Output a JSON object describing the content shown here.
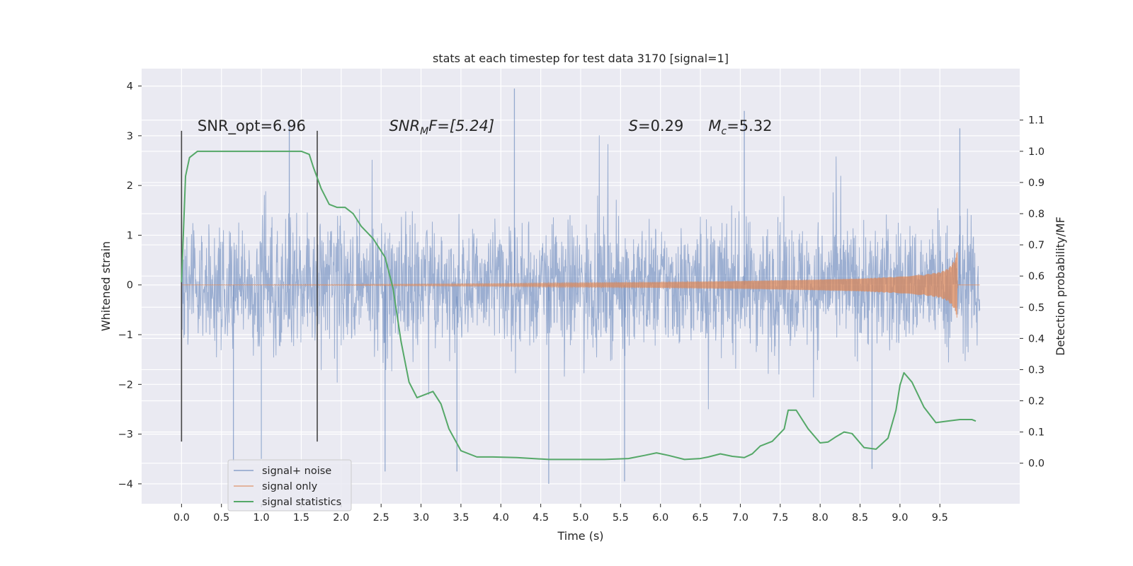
{
  "chart_data": {
    "type": "line",
    "title": "stats at each timestep for test data 3170 [signal=1]",
    "xlabel": "Time (s)",
    "ylabel": "Whitened strain",
    "ylabel_right": "Detection probability/MF",
    "xlim": [
      -0.5,
      10.5
    ],
    "ylim": [
      -4.4,
      4.35
    ],
    "ylim_right": [
      -0.13,
      1.265
    ],
    "x_ticks": [
      0.0,
      0.5,
      1.0,
      1.5,
      2.0,
      2.5,
      3.0,
      3.5,
      4.0,
      4.5,
      5.0,
      5.5,
      6.0,
      6.5,
      7.0,
      7.5,
      8.0,
      8.5,
      9.0,
      9.5
    ],
    "x_tick_labels": [
      "0.0",
      "0.5",
      "1.0",
      "1.5",
      "2.0",
      "2.5",
      "3.0",
      "3.5",
      "4.0",
      "4.5",
      "5.0",
      "5.5",
      "6.0",
      "6.5",
      "7.0",
      "7.5",
      "8.0",
      "8.5",
      "9.0",
      "9.5"
    ],
    "y_ticks": [
      4,
      3,
      2,
      1,
      0,
      -1,
      -2,
      -3,
      -4
    ],
    "y_tick_labels": [
      "4",
      "3",
      "2",
      "1",
      "0",
      "−1",
      "−2",
      "−3",
      "−4"
    ],
    "y_right_ticks": [
      1.1,
      1.0,
      0.9,
      0.8,
      0.7,
      0.6,
      0.5,
      0.4,
      0.3,
      0.2,
      0.1,
      0.0
    ],
    "y_right_tick_labels": [
      "1.1",
      "1.0",
      "0.9",
      "0.8",
      "0.7",
      "0.6",
      "0.5",
      "0.4",
      "0.3",
      "0.2",
      "0.1",
      "0.0"
    ],
    "grid": true,
    "legend_position": "lower-left",
    "annotations": {
      "snr_opt": "SNR_opt=6.96",
      "snr_mf_base": "SNR",
      "snr_mf_sub": "M",
      "snr_mf_rest": "F=[5.24]",
      "s_sym": "S",
      "s_rest": "=0.29",
      "mc_sym": "M",
      "mc_sub": "c",
      "mc_rest": "=5.32"
    },
    "vertical_markers": [
      {
        "x": 0.0,
        "y_range": [
          -3.15,
          3.1
        ]
      },
      {
        "x": 1.7,
        "y_range": [
          -3.15,
          3.1
        ]
      }
    ],
    "series": [
      {
        "name": "signal+ noise",
        "color": "#4c72b0",
        "axis": "left",
        "x_range": [
          0.0,
          10.0
        ],
        "typical_envelope": [
          -1.4,
          1.3
        ],
        "notable_peaks": [
          {
            "x": 4.17,
            "y": 3.95
          },
          {
            "x": 7.05,
            "y": 3.5
          },
          {
            "x": 9.75,
            "y": 3.15
          },
          {
            "x": 1.35,
            "y": 3.3
          },
          {
            "x": 0.65,
            "y": -3.55
          },
          {
            "x": 4.6,
            "y": -4.0
          },
          {
            "x": 5.55,
            "y": -3.95
          },
          {
            "x": 2.55,
            "y": -3.75
          },
          {
            "x": 3.45,
            "y": -3.75
          },
          {
            "x": 1.0,
            "y": -3.5
          },
          {
            "x": 8.65,
            "y": -3.7
          }
        ]
      },
      {
        "name": "signal only",
        "color": "#dd8452",
        "axis": "left",
        "x": [
          0.0,
          1.0,
          2.0,
          3.0,
          4.0,
          5.0,
          6.0,
          7.0,
          8.0,
          8.5,
          9.0,
          9.3,
          9.5,
          9.6,
          9.65,
          9.7,
          9.72
        ],
        "amplitude": [
          0.0,
          0.005,
          0.01,
          0.02,
          0.03,
          0.045,
          0.06,
          0.08,
          0.11,
          0.13,
          0.17,
          0.21,
          0.26,
          0.33,
          0.42,
          0.55,
          0.8
        ],
        "after_merger": {
          "x_range": [
            9.72,
            10.0
          ],
          "value": 0.0
        }
      },
      {
        "name": "signal statistics",
        "color": "#55a868",
        "axis": "right",
        "x": [
          0.0,
          0.05,
          0.1,
          0.2,
          0.3,
          0.5,
          1.0,
          1.3,
          1.5,
          1.6,
          1.65,
          1.75,
          1.85,
          1.95,
          2.05,
          2.15,
          2.25,
          2.4,
          2.55,
          2.65,
          2.75,
          2.85,
          2.95,
          3.05,
          3.15,
          3.25,
          3.35,
          3.5,
          3.7,
          3.9,
          4.2,
          4.6,
          5.0,
          5.3,
          5.6,
          5.8,
          5.95,
          6.1,
          6.3,
          6.5,
          6.6,
          6.75,
          6.9,
          7.05,
          7.15,
          7.25,
          7.4,
          7.55,
          7.6,
          7.7,
          7.85,
          8.0,
          8.1,
          8.2,
          8.3,
          8.4,
          8.55,
          8.7,
          8.85,
          8.95,
          9.0,
          9.05,
          9.15,
          9.3,
          9.45,
          9.6,
          9.75,
          9.9,
          9.95
        ],
        "y": [
          0.58,
          0.92,
          0.98,
          1.0,
          1.0,
          1.0,
          1.0,
          1.0,
          1.0,
          0.99,
          0.95,
          0.88,
          0.83,
          0.82,
          0.82,
          0.8,
          0.76,
          0.72,
          0.66,
          0.56,
          0.39,
          0.26,
          0.21,
          0.22,
          0.23,
          0.19,
          0.11,
          0.04,
          0.02,
          0.02,
          0.018,
          0.012,
          0.012,
          0.012,
          0.015,
          0.025,
          0.033,
          0.025,
          0.012,
          0.015,
          0.02,
          0.03,
          0.022,
          0.018,
          0.03,
          0.055,
          0.07,
          0.11,
          0.17,
          0.17,
          0.11,
          0.065,
          0.068,
          0.085,
          0.1,
          0.095,
          0.05,
          0.045,
          0.08,
          0.17,
          0.25,
          0.29,
          0.26,
          0.18,
          0.13,
          0.135,
          0.14,
          0.14,
          0.135
        ]
      }
    ]
  }
}
